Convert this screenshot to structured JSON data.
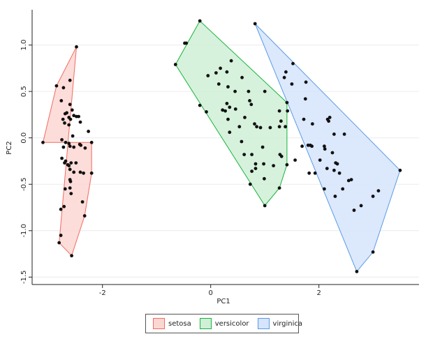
{
  "chart_data": {
    "type": "scatter",
    "xlabel": "PC1",
    "ylabel": "PC2",
    "xlim": [
      -3.3,
      3.85
    ],
    "ylim": [
      -1.58,
      1.38
    ],
    "xticks": [
      -2,
      0,
      2
    ],
    "xtick_labels": [
      "-2",
      "0",
      "2"
    ],
    "yticks": [
      1.0,
      0.5,
      0.0,
      -0.5,
      -1.0,
      -1.5
    ],
    "ytick_labels": [
      "1.0",
      "0.5",
      "0.0",
      "-0.5",
      "-1.0",
      "-1.5"
    ],
    "grid": true,
    "legend_position": "bottom",
    "series": [
      {
        "name": "setosa",
        "fill": "#fbd7d3",
        "stroke": "#f26b60",
        "hull": [
          [
            -2.48,
            0.98
          ],
          [
            -2.85,
            0.56
          ],
          [
            -3.1,
            -0.05
          ],
          [
            -2.2,
            -0.05
          ],
          [
            -2.2,
            -0.38
          ],
          [
            -2.33,
            -0.84
          ],
          [
            -2.57,
            -1.27
          ],
          [
            -2.8,
            -1.13
          ]
        ],
        "points": [
          [
            -2.48,
            0.98
          ],
          [
            -2.85,
            0.56
          ],
          [
            -2.72,
            0.54
          ],
          [
            -2.6,
            0.62
          ],
          [
            -2.76,
            0.4
          ],
          [
            -2.6,
            0.36
          ],
          [
            -2.56,
            0.3
          ],
          [
            -2.66,
            0.27
          ],
          [
            -2.69,
            0.26
          ],
          [
            -2.53,
            0.24
          ],
          [
            -2.62,
            0.22
          ],
          [
            -2.73,
            0.2
          ],
          [
            -2.59,
            0.2
          ],
          [
            -2.48,
            0.23
          ],
          [
            -2.44,
            0.23
          ],
          [
            -2.7,
            0.16
          ],
          [
            -2.62,
            0.14
          ],
          [
            -2.41,
            0.17
          ],
          [
            -2.26,
            0.07
          ],
          [
            -2.55,
            0.02
          ],
          [
            -3.1,
            -0.05
          ],
          [
            -2.75,
            -0.02
          ],
          [
            -2.68,
            -0.05
          ],
          [
            -2.62,
            -0.06
          ],
          [
            -2.42,
            -0.07
          ],
          [
            -2.2,
            -0.05
          ],
          [
            -2.72,
            -0.1
          ],
          [
            -2.6,
            -0.09
          ],
          [
            -2.53,
            -0.1
          ],
          [
            -2.4,
            -0.08
          ],
          [
            -2.32,
            -0.11
          ],
          [
            -2.75,
            -0.22
          ],
          [
            -2.68,
            -0.25
          ],
          [
            -2.7,
            -0.27
          ],
          [
            -2.64,
            -0.29
          ],
          [
            -2.58,
            -0.27
          ],
          [
            -2.49,
            -0.27
          ],
          [
            -2.62,
            -0.3
          ],
          [
            -2.6,
            -0.34
          ],
          [
            -2.53,
            -0.37
          ],
          [
            -2.41,
            -0.37
          ],
          [
            -2.35,
            -0.38
          ],
          [
            -2.2,
            -0.38
          ],
          [
            -2.6,
            -0.45
          ],
          [
            -2.59,
            -0.47
          ],
          [
            -2.69,
            -0.55
          ],
          [
            -2.6,
            -0.54
          ],
          [
            -2.58,
            -0.6
          ],
          [
            -2.37,
            -0.69
          ],
          [
            -2.71,
            -0.74
          ],
          [
            -2.77,
            -0.77
          ],
          [
            -2.33,
            -0.84
          ],
          [
            -2.77,
            -1.05
          ],
          [
            -2.8,
            -1.13
          ],
          [
            -2.57,
            -1.27
          ]
        ]
      },
      {
        "name": "versicolor",
        "fill": "#cfefd6",
        "stroke": "#16b53a",
        "hull": [
          [
            -0.2,
            1.26
          ],
          [
            -0.65,
            0.79
          ],
          [
            1.0,
            -0.73
          ],
          [
            1.27,
            -0.54
          ],
          [
            1.41,
            -0.29
          ],
          [
            1.41,
            0.38
          ]
        ],
        "points": [
          [
            -0.2,
            1.26
          ],
          [
            -0.48,
            1.02
          ],
          [
            -0.45,
            1.02
          ],
          [
            -0.65,
            0.79
          ],
          [
            0.38,
            0.83
          ],
          [
            0.18,
            0.75
          ],
          [
            0.3,
            0.71
          ],
          [
            0.1,
            0.7
          ],
          [
            -0.05,
            0.67
          ],
          [
            0.58,
            0.65
          ],
          [
            0.15,
            0.58
          ],
          [
            0.32,
            0.55
          ],
          [
            0.45,
            0.5
          ],
          [
            0.7,
            0.5
          ],
          [
            1.0,
            0.5
          ],
          [
            0.72,
            0.4
          ],
          [
            0.3,
            0.37
          ],
          [
            1.41,
            0.38
          ],
          [
            0.75,
            0.36
          ],
          [
            0.35,
            0.33
          ],
          [
            -0.2,
            0.35
          ],
          [
            0.46,
            0.31
          ],
          [
            0.22,
            0.3
          ],
          [
            0.27,
            0.29
          ],
          [
            1.27,
            0.29
          ],
          [
            1.42,
            0.29
          ],
          [
            -0.08,
            0.28
          ],
          [
            0.32,
            0.2
          ],
          [
            0.63,
            0.22
          ],
          [
            1.3,
            0.18
          ],
          [
            0.81,
            0.15
          ],
          [
            0.85,
            0.12
          ],
          [
            0.53,
            0.12
          ],
          [
            0.92,
            0.11
          ],
          [
            1.27,
            0.12
          ],
          [
            1.1,
            0.11
          ],
          [
            1.38,
            0.12
          ],
          [
            0.35,
            0.06
          ],
          [
            0.57,
            -0.04
          ],
          [
            0.96,
            -0.1
          ],
          [
            0.62,
            -0.18
          ],
          [
            0.76,
            -0.18
          ],
          [
            1.28,
            -0.18
          ],
          [
            1.31,
            -0.2
          ],
          [
            0.83,
            -0.28
          ],
          [
            0.98,
            -0.28
          ],
          [
            1.16,
            -0.3
          ],
          [
            1.41,
            -0.29
          ],
          [
            0.83,
            -0.33
          ],
          [
            0.76,
            -0.36
          ],
          [
            0.99,
            -0.44
          ],
          [
            0.73,
            -0.5
          ],
          [
            1.27,
            -0.54
          ],
          [
            1.0,
            -0.73
          ]
        ]
      },
      {
        "name": "virginica",
        "fill": "#d6e4fc",
        "stroke": "#5a9be6",
        "hull": [
          [
            0.82,
            1.23
          ],
          [
            3.5,
            -0.35
          ],
          [
            3.0,
            -1.23
          ],
          [
            2.7,
            -1.44
          ]
        ],
        "points": [
          [
            0.82,
            1.23
          ],
          [
            1.52,
            0.8
          ],
          [
            1.39,
            0.71
          ],
          [
            1.36,
            0.65
          ],
          [
            1.5,
            0.58
          ],
          [
            1.76,
            0.6
          ],
          [
            1.75,
            0.42
          ],
          [
            1.72,
            0.2
          ],
          [
            2.18,
            0.18
          ],
          [
            2.2,
            0.22
          ],
          [
            2.16,
            0.2
          ],
          [
            1.88,
            0.15
          ],
          [
            2.28,
            0.04
          ],
          [
            2.47,
            0.04
          ],
          [
            1.8,
            -0.08
          ],
          [
            1.84,
            -0.08
          ],
          [
            1.87,
            -0.09
          ],
          [
            1.69,
            -0.09
          ],
          [
            2.1,
            -0.09
          ],
          [
            2.11,
            -0.12
          ],
          [
            2.25,
            -0.16
          ],
          [
            2.02,
            -0.24
          ],
          [
            1.56,
            -0.24
          ],
          [
            2.31,
            -0.27
          ],
          [
            2.34,
            -0.28
          ],
          [
            2.15,
            -0.33
          ],
          [
            2.28,
            -0.35
          ],
          [
            2.38,
            -0.38
          ],
          [
            1.82,
            -0.38
          ],
          [
            1.93,
            -0.38
          ],
          [
            2.55,
            -0.46
          ],
          [
            2.6,
            -0.45
          ],
          [
            2.1,
            -0.55
          ],
          [
            2.44,
            -0.55
          ],
          [
            3.1,
            -0.57
          ],
          [
            3.5,
            -0.35
          ],
          [
            2.3,
            -0.63
          ],
          [
            3.0,
            -0.63
          ],
          [
            2.78,
            -0.73
          ],
          [
            2.65,
            -0.78
          ],
          [
            3.0,
            -1.23
          ],
          [
            2.7,
            -1.44
          ]
        ]
      }
    ]
  }
}
